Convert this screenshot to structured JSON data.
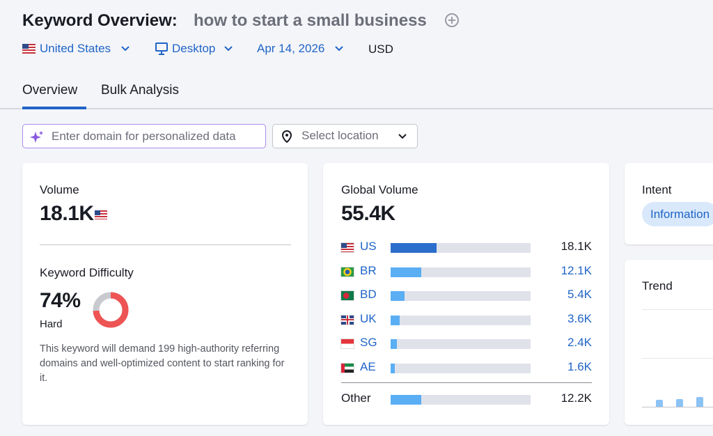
{
  "header": {
    "title": "Keyword Overview:",
    "keyword": "how to start a small business"
  },
  "filters": {
    "country": "United States",
    "device": "Desktop",
    "date": "Apr 14, 2026",
    "currency": "USD"
  },
  "tabs": [
    "Overview",
    "Bulk Analysis"
  ],
  "inputs": {
    "domain_placeholder": "Enter domain for personalized data",
    "location_placeholder": "Select location"
  },
  "volume": {
    "label": "Volume",
    "value": "18.1K"
  },
  "keyword_difficulty": {
    "label": "Keyword Difficulty",
    "value": 74,
    "value_label": "74%",
    "level": "Hard",
    "description": "This keyword will demand 199 high-authority referring domains and well-optimized content to start ranking for it."
  },
  "global_volume": {
    "label": "Global Volume",
    "value": 55400,
    "value_label": "55.4K",
    "countries": [
      {
        "code": "US",
        "value": 18100,
        "value_label": "18.1K"
      },
      {
        "code": "BR",
        "value": 12100,
        "value_label": "12.1K"
      },
      {
        "code": "BD",
        "value": 5400,
        "value_label": "5.4K"
      },
      {
        "code": "UK",
        "value": 3600,
        "value_label": "3.6K"
      },
      {
        "code": "SG",
        "value": 2400,
        "value_label": "2.4K"
      },
      {
        "code": "AE",
        "value": 1600,
        "value_label": "1.6K"
      }
    ],
    "other": {
      "label": "Other",
      "value": 12200,
      "value_label": "12.2K"
    }
  },
  "intent": {
    "label": "Intent",
    "value": "Information"
  },
  "trend": {
    "label": "Trend",
    "values": [
      0.7,
      0.8,
      1.0
    ]
  }
}
